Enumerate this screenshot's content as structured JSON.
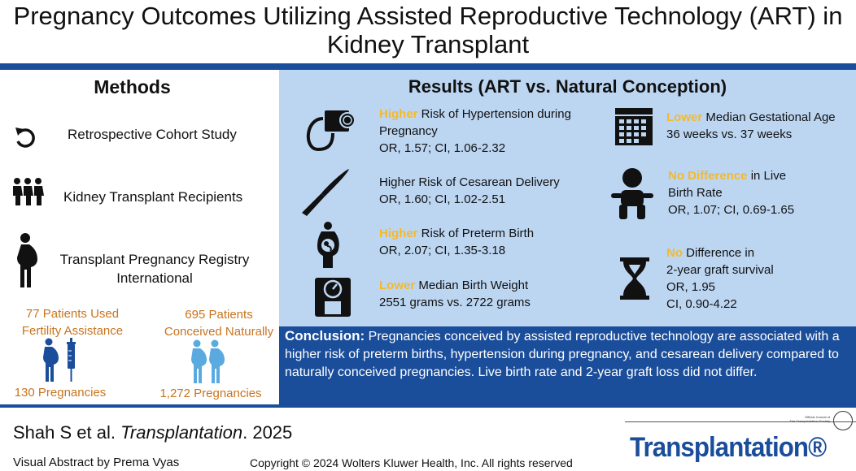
{
  "header": {
    "title_line1": "Pregnancy Outcomes Utilizing Assisted Reproductive Technology (ART) in",
    "title_line2": "Kidney Transplant"
  },
  "methods": {
    "title": "Methods",
    "items": [
      {
        "icon": "retrospective-arrow-icon",
        "text": "Retrospective Cohort Study"
      },
      {
        "icon": "people-group-icon",
        "text": "Kidney Transplant Recipients"
      },
      {
        "icon": "pregnant-woman-icon",
        "text_line1": "Transplant Pregnancy Registry",
        "text_line2": "International"
      }
    ],
    "groups": [
      {
        "label_line1": "77 Patients Used",
        "label_line2": "Fertility Assistance",
        "pregnancies": "130 Pregnancies",
        "icon": "pregnant-woman-syringe-icon"
      },
      {
        "label_line1": "695 Patients",
        "label_line2": "Conceived Naturally",
        "pregnancies": "1,272 Pregnancies",
        "icon": "pregnant-women-pair-icon"
      }
    ]
  },
  "results": {
    "title": "Results (ART vs. Natural Conception)",
    "left": [
      {
        "icon": "blood-pressure-icon",
        "highlight": "Higher",
        "line1": " Risk of Hypertension during",
        "line2": "Pregnancy",
        "line3": "OR, 1.57; CI, 1.06-2.32"
      },
      {
        "icon": "scalpel-icon",
        "highlight": "",
        "line1": "Higher Risk of Cesarean Delivery",
        "line2": "OR, 1.60; CI, 1.02-2.51"
      },
      {
        "icon": "fetus-icon",
        "highlight": "Higher",
        "line1": " Risk of Preterm Birth",
        "line2": "OR, 2.07; CI, 1.35-3.18"
      },
      {
        "icon": "weight-scale-icon",
        "highlight": "Lower",
        "line1": " Median Birth Weight",
        "line2": "2551 grams vs. 2722 grams"
      }
    ],
    "right": [
      {
        "icon": "calendar-icon",
        "highlight": "Lower",
        "line1": " Median Gestational Age",
        "line2": "36 weeks vs. 37 weeks"
      },
      {
        "icon": "baby-icon",
        "highlight": "No Difference",
        "line1": " in Live",
        "line2": "Birth Rate",
        "line3": "OR, 1.07; CI, 0.69-1.65"
      },
      {
        "icon": "hourglass-icon",
        "highlight": "No",
        "line1": " Difference in",
        "line2": "2-year graft survival",
        "line3": "OR, 1.95",
        "line4": "CI, 0.90-4.22"
      }
    ]
  },
  "conclusion": {
    "label": "Conclusion:",
    "text": " Pregnancies conceived by assisted reproductive technology  are associated with a higher risk of preterm births, hypertension during pregnancy, and cesarean delivery compared to naturally conceived pregnancies. Live birth rate and 2-year graft loss did not differ."
  },
  "footer": {
    "citation_prefix": "Shah S et al. ",
    "citation_journal": "Transplantation",
    "citation_suffix": ".  2025",
    "abstract_by": "Visual Abstract by Prema Vyas",
    "copyright": "Copyright © 2024  Wolters Kluwer Health, Inc. All rights reserved",
    "brand": "Transplantation®",
    "journal_note_line1": "Official Journal of",
    "journal_note_line2": "The Transplantation Society"
  },
  "colors": {
    "dark_blue": "#1a4d9a",
    "light_blue_panel": "#bcd6f2",
    "highlight_yellow": "#f5b92a",
    "orange_text": "#c8741e",
    "icon_blue": "#5aaae0"
  }
}
